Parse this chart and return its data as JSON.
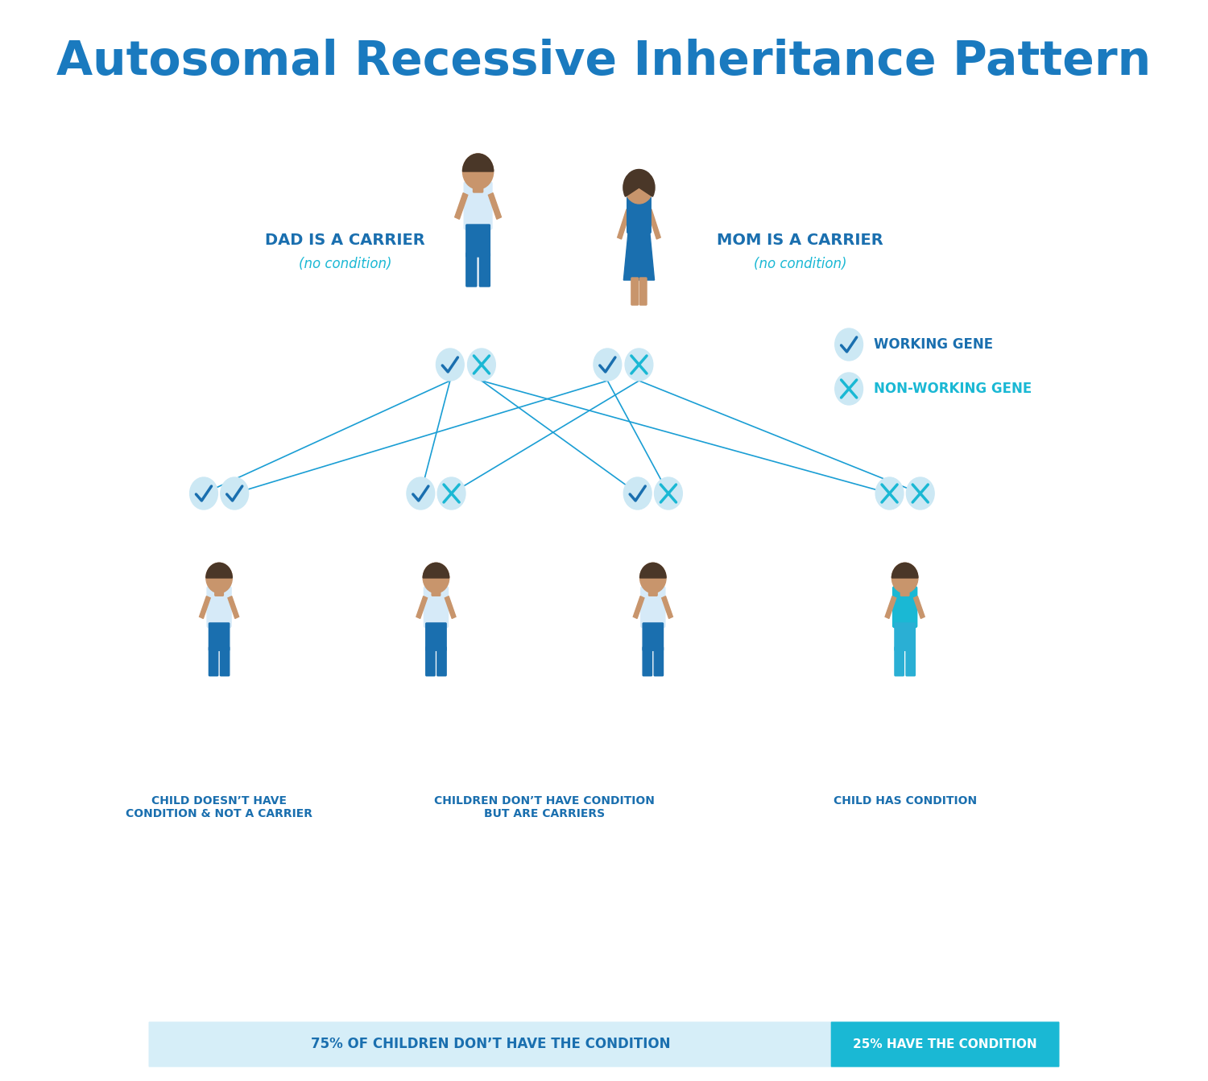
{
  "title": "Autosomal Recessive Inheritance Pattern",
  "title_color": "#1a7abf",
  "title_fontsize": 42,
  "bg_color": "#ffffff",
  "skin_color": "#c8956c",
  "dark_hair": "#4a3728",
  "light_shirt": "#d6eaf8",
  "blue_shirt": "#2e86c1",
  "teal_shirt": "#1ab8d4",
  "blue_pants": "#1a6faf",
  "blue_dress": "#1a6faf",
  "teal_blue": "#1ab8d4",
  "dark_blue": "#1a6faf",
  "mid_blue": "#2e86c1",
  "label_blue": "#1a6faf",
  "sub_label_color": "#1ab8d4",
  "check_circle_color": "#cce8f4",
  "check_color": "#1a6faf",
  "x_color": "#1ab8d4",
  "line_color": "#1a9ed4",
  "bar_left_color": "#d6eef8",
  "bar_right_color": "#1ab8d4",
  "bar_text_left_color": "#1a6faf",
  "bar_text_right_color": "#ffffff",
  "parent_labels": [
    "DAD IS A CARRIER",
    "MOM IS A CARRIER"
  ],
  "parent_sublabels": [
    "(no condition)",
    "(no condition)"
  ],
  "child_labels": [
    "CHILD DOESN’T HAVE\nCONDITION & NOT A CARRIER",
    "CHILDREN DON’T HAVE CONDITION\nBUT ARE CARRIERS",
    "CHILD HAS CONDITION"
  ],
  "legend_labels": [
    "WORKING GENE",
    "NON-WORKING GENE"
  ],
  "bar_left_text": "75% OF CHILDREN DON’T HAVE THE CONDITION",
  "bar_right_text": "25% HAVE THE CONDITION"
}
